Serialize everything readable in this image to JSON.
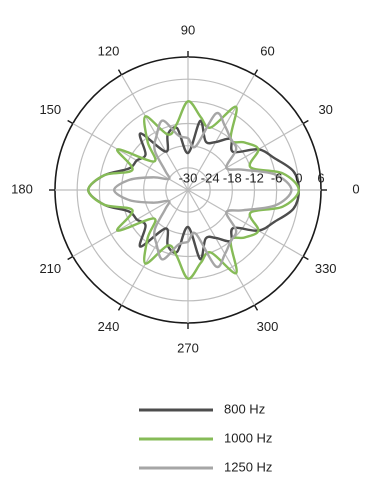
{
  "chart_data": {
    "type": "polar-line",
    "title": "",
    "angular_ticks": [
      0,
      30,
      60,
      90,
      120,
      150,
      180,
      210,
      240,
      270,
      300,
      330
    ],
    "radial_ticks": [
      -30,
      -24,
      -18,
      -12,
      -6,
      0,
      6
    ],
    "rlim": [
      -30,
      6
    ],
    "radial_tick_labels_shown": [
      "-30",
      "-24",
      "-18",
      "-12",
      "-6",
      "0",
      "6"
    ],
    "angular_unit": "degrees",
    "grid": true,
    "legend_position": "bottom",
    "series": [
      {
        "name": "800 Hz",
        "color": "#4d4d4d",
        "theta": [
          0,
          10,
          20,
          30,
          40,
          50,
          60,
          70,
          80,
          90,
          100,
          110,
          120,
          130,
          140,
          150,
          160,
          170,
          180
        ],
        "r": [
          0,
          -1,
          -5,
          -8,
          -14,
          -12,
          -15,
          -16,
          -11,
          -20,
          -13,
          -14,
          -18,
          -10,
          -15,
          -14,
          -13,
          -7,
          -3
        ]
      },
      {
        "name": "1000 Hz",
        "color": "#86bb57",
        "theta": [
          0,
          10,
          20,
          30,
          40,
          50,
          60,
          70,
          80,
          90,
          100,
          110,
          120,
          130,
          140,
          150,
          160,
          170,
          180
        ],
        "r": [
          0,
          -4,
          -12,
          -8,
          -10,
          -12,
          -4,
          -12,
          -10,
          -6,
          -12,
          -14,
          -7,
          -13,
          -18,
          -8,
          -14,
          -7,
          -3
        ]
      },
      {
        "name": "1250 Hz",
        "color": "#a6a6a6",
        "theta": [
          0,
          10,
          20,
          30,
          40,
          50,
          60,
          70,
          80,
          90,
          100,
          110,
          120,
          130,
          140,
          150,
          160,
          170,
          180
        ],
        "r": [
          -2,
          -6,
          -14,
          -18,
          -13,
          -12,
          -10,
          -8,
          -18,
          -16,
          -15,
          -10,
          -13,
          -16,
          -22,
          -24,
          -20,
          -14,
          -10
        ]
      }
    ]
  }
}
